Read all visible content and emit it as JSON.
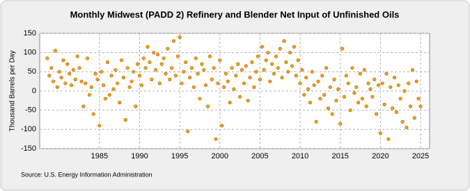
{
  "chart_data": {
    "type": "scatter",
    "title": "Monthly Midwest (PADD 2) Refinery and Blender Net Input of Unfinished Oils",
    "ylabel": "Thousand Barrels per Day",
    "source": "Source: U.S. Energy Information Administration",
    "color": "#f0a020",
    "grid": true,
    "xlim": [
      1977.55,
      2026.13
    ],
    "ylim": [
      -150,
      150
    ],
    "xticks": [
      1985,
      1990,
      1995,
      2000,
      2005,
      2010,
      2015,
      2020,
      2025
    ],
    "yticks": [
      -150,
      -100,
      -50,
      0,
      50,
      100,
      150
    ],
    "x": [
      1978.5,
      1978.75,
      1979,
      1979.25,
      1979.5,
      1979.75,
      1980,
      1980.25,
      1980.5,
      1980.75,
      1981,
      1981.25,
      1981.5,
      1981.75,
      1982,
      1982.25,
      1982.5,
      1982.75,
      1983,
      1983.25,
      1983.5,
      1983.75,
      1984,
      1984.25,
      1984.5,
      1984.75,
      1985,
      1985.25,
      1985.5,
      1985.75,
      1986,
      1986.25,
      1986.5,
      1986.75,
      1987,
      1987.25,
      1987.5,
      1987.75,
      1988,
      1988.25,
      1988.5,
      1988.75,
      1989,
      1989.25,
      1989.5,
      1989.75,
      1990,
      1990.25,
      1990.5,
      1990.75,
      1991,
      1991.25,
      1991.5,
      1991.75,
      1992,
      1992.25,
      1992.5,
      1992.75,
      1993,
      1993.25,
      1993.5,
      1993.75,
      1994,
      1994.25,
      1994.5,
      1994.75,
      1995,
      1995.25,
      1995.5,
      1995.75,
      1996,
      1996.25,
      1996.5,
      1996.75,
      1997,
      1997.25,
      1997.5,
      1997.75,
      1998,
      1998.25,
      1998.5,
      1998.75,
      1999,
      1999.25,
      1999.5,
      1999.75,
      2000,
      2000.25,
      2000.5,
      2000.75,
      2001,
      2001.25,
      2001.5,
      2001.75,
      2002,
      2002.25,
      2002.5,
      2002.75,
      2003,
      2003.25,
      2003.5,
      2003.75,
      2004,
      2004.25,
      2004.5,
      2004.75,
      2005,
      2005.25,
      2005.5,
      2005.75,
      2006,
      2006.25,
      2006.5,
      2006.75,
      2007,
      2007.25,
      2007.5,
      2007.75,
      2008,
      2008.25,
      2008.5,
      2008.75,
      2009,
      2009.25,
      2009.5,
      2009.75,
      2010,
      2010.25,
      2010.5,
      2010.75,
      2011,
      2011.25,
      2011.5,
      2011.75,
      2012,
      2012.25,
      2012.5,
      2012.75,
      2013,
      2013.25,
      2013.5,
      2013.75,
      2014,
      2014.25,
      2014.5,
      2014.75,
      2015,
      2015.25,
      2015.5,
      2015.75,
      2016,
      2016.25,
      2016.5,
      2016.75,
      2017,
      2017.25,
      2017.5,
      2017.75,
      2018,
      2018.25,
      2018.5,
      2018.75,
      2019,
      2019.25,
      2019.5,
      2019.75,
      2020,
      2020.25,
      2020.5,
      2020.75,
      2021,
      2021.25,
      2021.5,
      2021.75,
      2022,
      2022.25,
      2022.5,
      2022.75,
      2023,
      2023.25,
      2023.5,
      2023.75,
      2024,
      2024.25,
      2024.5,
      2024.75,
      2025
    ],
    "values": [
      85,
      40,
      60,
      25,
      105,
      10,
      50,
      35,
      80,
      20,
      70,
      45,
      15,
      55,
      30,
      90,
      60,
      25,
      -40,
      20,
      85,
      -10,
      10,
      -60,
      45,
      30,
      -90,
      50,
      15,
      -20,
      75,
      -10,
      40,
      5,
      55,
      20,
      -30,
      80,
      35,
      -75,
      60,
      10,
      25,
      50,
      -40,
      70,
      40,
      15,
      85,
      60,
      115,
      75,
      30,
      100,
      55,
      95,
      20,
      70,
      85,
      45,
      110,
      30,
      60,
      130,
      40,
      90,
      140,
      20,
      50,
      75,
      -105,
      35,
      60,
      10,
      85,
      45,
      -20,
      70,
      55,
      15,
      -40,
      90,
      30,
      60,
      -125,
      20,
      80,
      -90,
      10,
      45,
      25,
      -30,
      60,
      5,
      40,
      70,
      -15,
      55,
      20,
      65,
      -25,
      35,
      75,
      10,
      50,
      90,
      30,
      115,
      55,
      80,
      100,
      25,
      70,
      45,
      90,
      60,
      110,
      35,
      130,
      75,
      50,
      100,
      65,
      115,
      40,
      80,
      20,
      55,
      -10,
      35,
      5,
      -30,
      50,
      15,
      -80,
      25,
      -20,
      40,
      -10,
      60,
      -45,
      10,
      -60,
      30,
      -25,
      5,
      -85,
      110,
      -15,
      40,
      20,
      -50,
      60,
      -5,
      10,
      -30,
      45,
      -20,
      55,
      -40,
      20,
      5,
      -15,
      30,
      -60,
      15,
      -110,
      20,
      -35,
      45,
      -125,
      10,
      -45,
      35,
      -55,
      15,
      -20,
      -80,
      0,
      -95,
      20,
      -40,
      55,
      -70,
      25,
      -20,
      -40
    ]
  }
}
